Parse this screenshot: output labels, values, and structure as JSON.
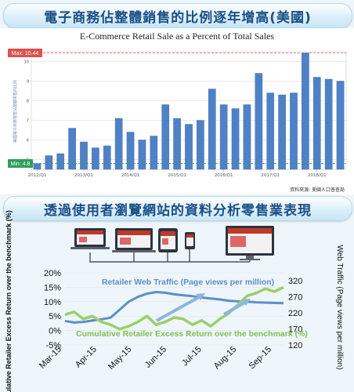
{
  "header1": {
    "title": "電子商務佔整體銷售的比例逐年增高(美國)"
  },
  "header2": {
    "title": "透過使用者瀏覽網站的資料分析零售業表現"
  },
  "source": "資料來源: 美國人口普查局",
  "colors": {
    "banner_text": "#1a4f86",
    "bar": "#4f81c7",
    "max_badge": "#d9534f",
    "min_badge": "#2e9e5b",
    "traffic_line": "#5b8fc7",
    "excess_line": "#9ccf6a"
  },
  "chart_data": [
    {
      "type": "bar",
      "title": "E-Commerce Retail Sale as a Percent of Total Sales",
      "ylabel": "美國電子商務零售佔整體零售的比例",
      "ylim": [
        4.5,
        10.5
      ],
      "yticks": [
        5,
        6,
        7,
        8,
        9,
        10
      ],
      "x_tick_labels": [
        "2012/Q1",
        "2013/Q1",
        "2014/Q1",
        "2015/Q1",
        "2016/Q1",
        "2017/Q1",
        "2018/Q1"
      ],
      "categories": [
        "2012/Q1",
        "2012/Q2",
        "2012/Q3",
        "2012/Q4",
        "2013/Q1",
        "2013/Q2",
        "2013/Q3",
        "2013/Q4",
        "2014/Q1",
        "2014/Q2",
        "2014/Q3",
        "2014/Q4",
        "2015/Q1",
        "2015/Q2",
        "2015/Q3",
        "2015/Q4",
        "2016/Q1",
        "2016/Q2",
        "2016/Q3",
        "2016/Q4",
        "2017/Q1",
        "2017/Q2",
        "2017/Q3",
        "2017/Q4",
        "2018/Q1",
        "2018/Q2",
        "2018/Q3"
      ],
      "values": [
        4.8,
        5.2,
        5.3,
        6.6,
        5.9,
        5.6,
        5.7,
        7.1,
        6.4,
        6.0,
        6.2,
        7.8,
        7.1,
        6.8,
        7.0,
        8.6,
        7.8,
        7.6,
        7.8,
        9.4,
        8.4,
        8.3,
        8.4,
        10.44,
        9.2,
        9.1,
        9.0
      ],
      "max_label": "Max: 10.44",
      "min_label": "Min: 4.8",
      "grid": true
    },
    {
      "type": "line",
      "x_tick_labels": [
        "Mar-15",
        "Apr-15",
        "May-15",
        "Jun-15",
        "Jul-15",
        "Aug-15",
        "Sep-15"
      ],
      "left_axis": {
        "label": "Cumulative Retailer Excess Return over the benchmark (%)",
        "ticks": [
          "-5%",
          "0%",
          "5%",
          "10%",
          "15%",
          "20%"
        ],
        "range": [
          -5,
          20
        ]
      },
      "right_axis": {
        "label": "Web Traffic (Page views per million)",
        "ticks": [
          "120",
          "170",
          "220",
          "270",
          "320"
        ],
        "range": [
          120,
          345
        ]
      },
      "series": [
        {
          "name": "Retailer Web Traffic (Page views per million)",
          "axis": "right",
          "values": [
            195,
            190,
            192,
            196,
            200,
            205,
            230,
            255,
            270,
            280,
            285,
            283,
            278,
            275,
            272,
            268,
            265,
            262,
            258,
            256,
            255,
            253,
            252,
            251,
            250
          ]
        },
        {
          "name": "Cumulative Retailer Excess Return over the benchmark (%)",
          "axis": "left",
          "values": [
            5.5,
            6.5,
            4.0,
            5.0,
            3.0,
            2.0,
            0.5,
            1.5,
            3.0,
            5.0,
            2.0,
            3.0,
            4.5,
            4.0,
            2.0,
            3.5,
            1.5,
            4.0,
            6.0,
            9.0,
            12.0,
            13.0,
            14.5,
            13.5,
            15.0
          ]
        }
      ]
    }
  ]
}
